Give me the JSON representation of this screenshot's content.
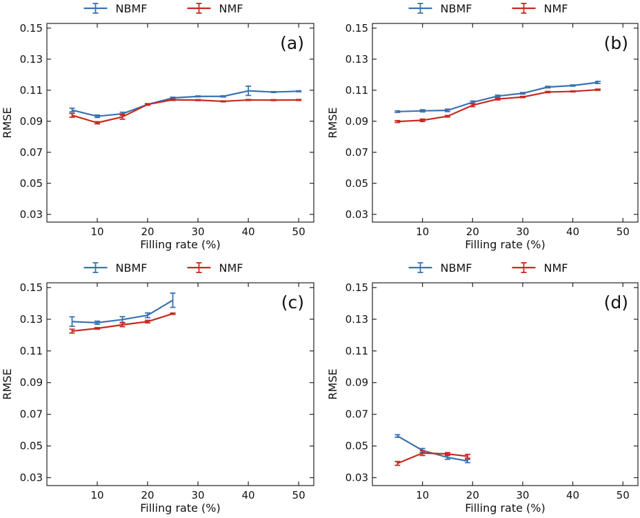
{
  "chart_data": [
    {
      "type": "line",
      "panel_label": "(a)",
      "xlabel": "Filling rate (%)",
      "ylabel": "RMSE",
      "xlim": [
        0,
        53
      ],
      "ylim": [
        0.025,
        0.153
      ],
      "xticks": [
        10,
        20,
        30,
        40,
        50
      ],
      "yticks": [
        0.03,
        0.05,
        0.07,
        0.09,
        0.11,
        0.13,
        0.15
      ],
      "legend": {
        "placement": "top-center",
        "entries": [
          "NBMF",
          "NMF"
        ]
      },
      "series": [
        {
          "name": "NBMF",
          "color": "#3a72b0",
          "x": [
            5,
            10,
            15,
            20,
            25,
            30,
            35,
            40,
            45,
            50
          ],
          "y": [
            0.0972,
            0.0932,
            0.0948,
            0.1008,
            0.105,
            0.106,
            0.106,
            0.1096,
            0.1088,
            0.1093
          ],
          "err": [
            0.0012,
            0.0008,
            0.001,
            0.0005,
            0.0005,
            0.0003,
            0.0004,
            0.003,
            0.0003,
            0.0003
          ]
        },
        {
          "name": "NMF",
          "color": "#c8281e",
          "x": [
            5,
            10,
            15,
            20,
            25,
            30,
            35,
            40,
            45,
            50
          ],
          "y": [
            0.0938,
            0.089,
            0.0928,
            0.1008,
            0.1038,
            0.1036,
            0.1028,
            0.1037,
            0.1036,
            0.1037
          ],
          "err": [
            0.0012,
            0.0007,
            0.0015,
            0.0005,
            0.0004,
            0.0003,
            0.0003,
            0.0003,
            0.0003,
            0.0003
          ]
        }
      ]
    },
    {
      "type": "line",
      "panel_label": "(b)",
      "xlabel": "Filling rate (%)",
      "ylabel": "RMSE",
      "xlim": [
        0,
        53
      ],
      "ylim": [
        0.025,
        0.153
      ],
      "xticks": [
        10,
        20,
        30,
        40,
        50
      ],
      "yticks": [
        0.03,
        0.05,
        0.07,
        0.09,
        0.11,
        0.13,
        0.15
      ],
      "legend": {
        "placement": "top-center",
        "entries": [
          "NBMF",
          "NMF"
        ]
      },
      "series": [
        {
          "name": "NBMF",
          "color": "#3a72b0",
          "x": [
            5,
            10,
            15,
            20,
            25,
            30,
            35,
            40,
            45
          ],
          "y": [
            0.0962,
            0.0967,
            0.097,
            0.1022,
            0.1062,
            0.108,
            0.112,
            0.113,
            0.115
          ],
          "err": [
            0.0005,
            0.0007,
            0.0008,
            0.0008,
            0.0006,
            0.0005,
            0.0005,
            0.0004,
            0.0007
          ]
        },
        {
          "name": "NMF",
          "color": "#c8281e",
          "x": [
            5,
            10,
            15,
            20,
            25,
            30,
            35,
            40,
            45
          ],
          "y": [
            0.0898,
            0.0906,
            0.0932,
            0.1003,
            0.1043,
            0.1056,
            0.1088,
            0.1092,
            0.1103
          ],
          "err": [
            0.0006,
            0.0008,
            0.0005,
            0.0009,
            0.0006,
            0.0004,
            0.0004,
            0.0003,
            0.0004
          ]
        }
      ]
    },
    {
      "type": "line",
      "panel_label": "(c)",
      "xlabel": "Filling rate (%)",
      "ylabel": "RMSE",
      "xlim": [
        0,
        53
      ],
      "ylim": [
        0.025,
        0.153
      ],
      "xticks": [
        10,
        20,
        30,
        40,
        50
      ],
      "yticks": [
        0.03,
        0.05,
        0.07,
        0.09,
        0.11,
        0.13,
        0.15
      ],
      "legend": {
        "placement": "top-center",
        "entries": [
          "NBMF",
          "NMF"
        ]
      },
      "series": [
        {
          "name": "NBMF",
          "color": "#3a72b0",
          "x": [
            5,
            10,
            15,
            20,
            25
          ],
          "y": [
            0.1285,
            0.1278,
            0.1298,
            0.1325,
            0.142
          ],
          "err": [
            0.003,
            0.001,
            0.0018,
            0.0015,
            0.0045
          ]
        },
        {
          "name": "NMF",
          "color": "#c8281e",
          "x": [
            5,
            10,
            15,
            20,
            25
          ],
          "y": [
            0.1225,
            0.1242,
            0.1265,
            0.1285,
            0.1335
          ],
          "err": [
            0.0012,
            0.0005,
            0.0012,
            0.0008,
            0.0004
          ]
        }
      ]
    },
    {
      "type": "line",
      "panel_label": "(d)",
      "xlabel": "Filling rate (%)",
      "ylabel": "RMSE",
      "xlim": [
        0,
        53
      ],
      "ylim": [
        0.025,
        0.153
      ],
      "xticks": [
        10,
        20,
        30,
        40,
        50
      ],
      "yticks": [
        0.03,
        0.05,
        0.07,
        0.09,
        0.11,
        0.13,
        0.15
      ],
      "legend": {
        "placement": "top-center",
        "entries": [
          "NBMF",
          "NMF"
        ]
      },
      "series": [
        {
          "name": "NBMF",
          "color": "#3a72b0",
          "x": [
            5,
            10,
            15,
            19
          ],
          "y": [
            0.0563,
            0.0472,
            0.0428,
            0.0405
          ],
          "err": [
            0.0008,
            0.0012,
            0.0012,
            0.001
          ]
        },
        {
          "name": "NMF",
          "color": "#c8281e",
          "x": [
            5,
            10,
            15,
            19
          ],
          "y": [
            0.039,
            0.0455,
            0.045,
            0.0435
          ],
          "err": [
            0.0012,
            0.0015,
            0.0008,
            0.0012
          ]
        }
      ]
    }
  ]
}
